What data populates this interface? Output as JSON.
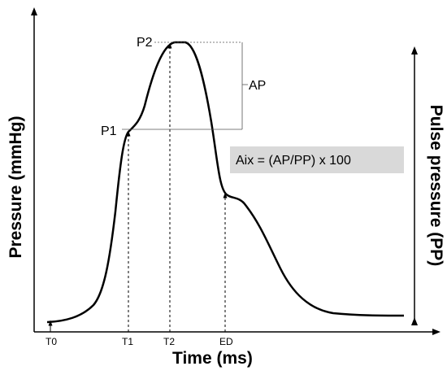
{
  "diagram": {
    "y_axis_title": "Pressure (mmHg)",
    "right_axis_title": "Pulse pressure (PP)",
    "x_axis_title": "Time (ms)",
    "x_ticks": [
      "T0",
      "T1",
      "T2",
      "ED"
    ],
    "points": {
      "p1": "P1",
      "p2": "P2"
    },
    "ap_label": "AP",
    "formula": "Aix = (AP/PP) x 100",
    "formula_box_color": "#d9d9d9"
  }
}
